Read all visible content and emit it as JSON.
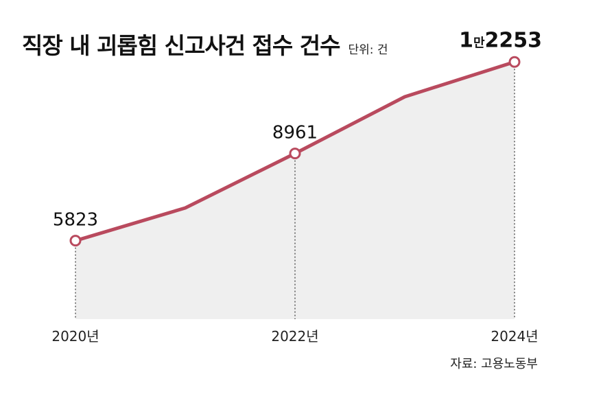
{
  "header": {
    "title": "직장 내 괴롭힘 신고사건 접수 건수",
    "unit": "단위: 건"
  },
  "source": "자료: 고용노동부",
  "chart_data": {
    "type": "area",
    "title": "직장 내 괴롭힘 신고사건 접수 건수",
    "ylabel": "",
    "xlabel": "",
    "unit": "단위: 건",
    "x": [
      2020,
      2021,
      2022,
      2023,
      2024
    ],
    "values": [
      5823,
      7000,
      8961,
      11000,
      12253
    ],
    "x_tick_labels": [
      {
        "x": 2020,
        "label": "2020년"
      },
      {
        "x": 2022,
        "label": "2022년"
      },
      {
        "x": 2024,
        "label": "2024년"
      }
    ],
    "data_labels": [
      {
        "x": 2020,
        "label": "5823"
      },
      {
        "x": 2022,
        "label": "8961"
      },
      {
        "x": 2024,
        "label": "1만2253",
        "parts": [
          "1",
          "만",
          "2253"
        ]
      }
    ],
    "marked_points": [
      2020,
      2022,
      2024
    ],
    "ylim": [
      3000,
      13000
    ],
    "grid": false,
    "legend": "none",
    "colors": {
      "line": "#b94a5e",
      "fill": "#efefef",
      "marker_fill": "#ffffff",
      "guide": "#333333"
    }
  }
}
